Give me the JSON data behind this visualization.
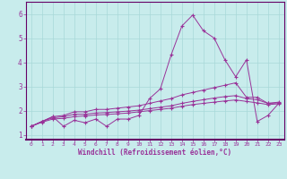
{
  "xlabel": "Windchill (Refroidissement éolien,°C)",
  "background_color": "#c8ecec",
  "grid_color": "#a8d8d8",
  "line_color": "#993399",
  "spine_color": "#660066",
  "xlim": [
    -0.5,
    23.5
  ],
  "ylim": [
    0.8,
    6.5
  ],
  "xticks": [
    0,
    1,
    2,
    3,
    4,
    5,
    6,
    7,
    8,
    9,
    10,
    11,
    12,
    13,
    14,
    15,
    16,
    17,
    18,
    19,
    20,
    21,
    22,
    23
  ],
  "yticks": [
    1,
    2,
    3,
    4,
    5,
    6
  ],
  "series1_x": [
    0,
    1,
    2,
    3,
    4,
    5,
    6,
    7,
    8,
    9,
    10,
    11,
    12,
    13,
    14,
    15,
    16,
    17,
    18,
    19,
    20,
    21,
    22,
    23
  ],
  "series1_y": [
    1.35,
    1.55,
    1.75,
    1.35,
    1.6,
    1.5,
    1.65,
    1.35,
    1.65,
    1.65,
    1.8,
    2.5,
    2.9,
    4.3,
    5.5,
    5.95,
    5.3,
    5.0,
    4.1,
    3.4,
    4.1,
    1.55,
    1.8,
    2.3
  ],
  "series2_x": [
    0,
    1,
    2,
    3,
    4,
    5,
    6,
    7,
    8,
    9,
    10,
    11,
    12,
    13,
    14,
    15,
    16,
    17,
    18,
    19,
    20,
    21,
    22,
    23
  ],
  "series2_y": [
    1.35,
    1.55,
    1.75,
    1.8,
    1.95,
    1.95,
    2.05,
    2.05,
    2.1,
    2.15,
    2.2,
    2.3,
    2.4,
    2.5,
    2.65,
    2.75,
    2.85,
    2.95,
    3.05,
    3.15,
    2.55,
    2.55,
    2.3,
    2.35
  ],
  "series3_x": [
    0,
    1,
    2,
    3,
    4,
    5,
    6,
    7,
    8,
    9,
    10,
    11,
    12,
    13,
    14,
    15,
    16,
    17,
    18,
    19,
    20,
    21,
    22,
    23
  ],
  "series3_y": [
    1.35,
    1.55,
    1.7,
    1.75,
    1.85,
    1.85,
    1.9,
    1.92,
    1.95,
    1.98,
    2.02,
    2.08,
    2.14,
    2.2,
    2.3,
    2.38,
    2.45,
    2.52,
    2.58,
    2.62,
    2.5,
    2.45,
    2.3,
    2.32
  ],
  "series4_x": [
    0,
    1,
    2,
    3,
    4,
    5,
    6,
    7,
    8,
    9,
    10,
    11,
    12,
    13,
    14,
    15,
    16,
    17,
    18,
    19,
    20,
    21,
    22,
    23
  ],
  "series4_y": [
    1.35,
    1.52,
    1.65,
    1.68,
    1.75,
    1.78,
    1.82,
    1.84,
    1.87,
    1.9,
    1.95,
    2.0,
    2.05,
    2.1,
    2.18,
    2.25,
    2.3,
    2.35,
    2.4,
    2.44,
    2.38,
    2.32,
    2.25,
    2.28
  ]
}
